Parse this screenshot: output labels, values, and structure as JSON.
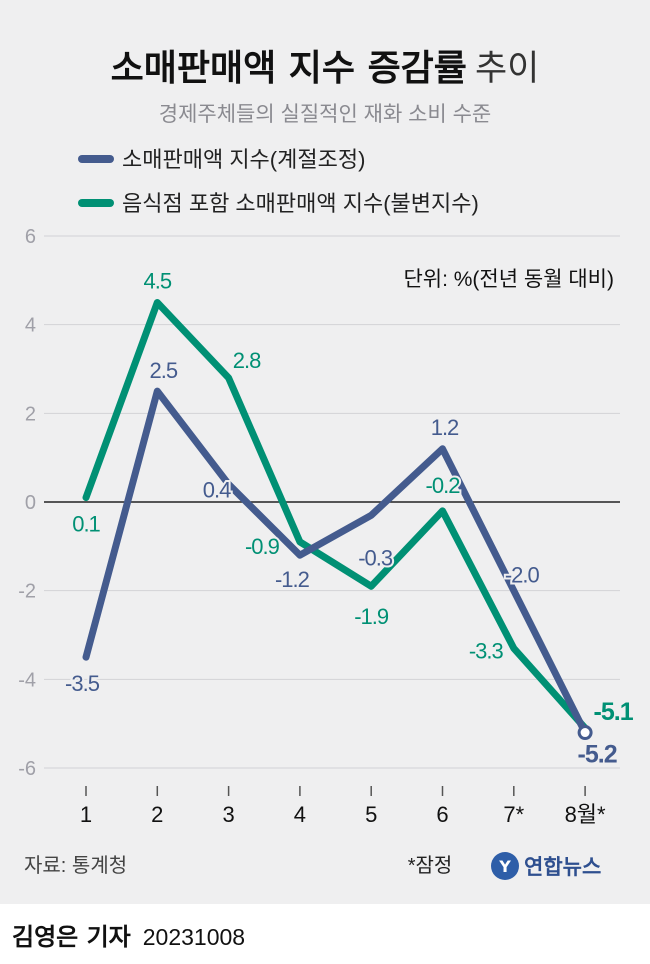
{
  "header": {
    "title_bold": "소매판매액 지수 증감률",
    "title_light": "추이",
    "subtitle": "경제주체들의 실질적인 재화 소비 수준"
  },
  "unit_note": "단위: %(전년 동월 대비)",
  "source": "자료: 통계청",
  "provisional_note": "*잠정",
  "brand": {
    "name": "연합뉴스",
    "logo_letter": "Y"
  },
  "byline": {
    "reporter": "김영은 기자",
    "date": "20231008"
  },
  "colors": {
    "blue": "#445b8e",
    "green": "#009074",
    "axis": "#222222",
    "grid": "#d2d2d6",
    "tick": "#a0a0a8"
  },
  "chart_data": {
    "type": "line",
    "categories": [
      "1",
      "2",
      "3",
      "4",
      "5",
      "6",
      "7*",
      "8월*"
    ],
    "ylim": [
      -6,
      6
    ],
    "yticks": [
      6,
      4,
      2,
      0,
      -2,
      -4,
      -6
    ],
    "ytick_labels": [
      "6",
      "4",
      "2",
      "0",
      "-2",
      "-4",
      "-6"
    ],
    "grid": true,
    "legend_position": "top-left",
    "series": [
      {
        "name": "소매판매액 지수(계절조정)",
        "color": "#445b8e",
        "values": [
          -3.5,
          2.5,
          0.4,
          -1.2,
          -0.3,
          1.2,
          -2.0,
          -5.2
        ],
        "labels": [
          "-3.5",
          "2.5",
          "0.4",
          "-1.2",
          "-0.3",
          "1.2",
          "-2.0",
          "-5.2"
        ]
      },
      {
        "name": "음식점 포함 소매판매액 지수(불변지수)",
        "color": "#009074",
        "values": [
          0.1,
          4.5,
          2.8,
          -0.9,
          -1.9,
          -0.2,
          -3.3,
          -5.1
        ],
        "labels": [
          "0.1",
          "4.5",
          "2.8",
          "-0.9",
          "-1.9",
          "-0.2",
          "-3.3",
          "-5.1"
        ]
      }
    ]
  }
}
